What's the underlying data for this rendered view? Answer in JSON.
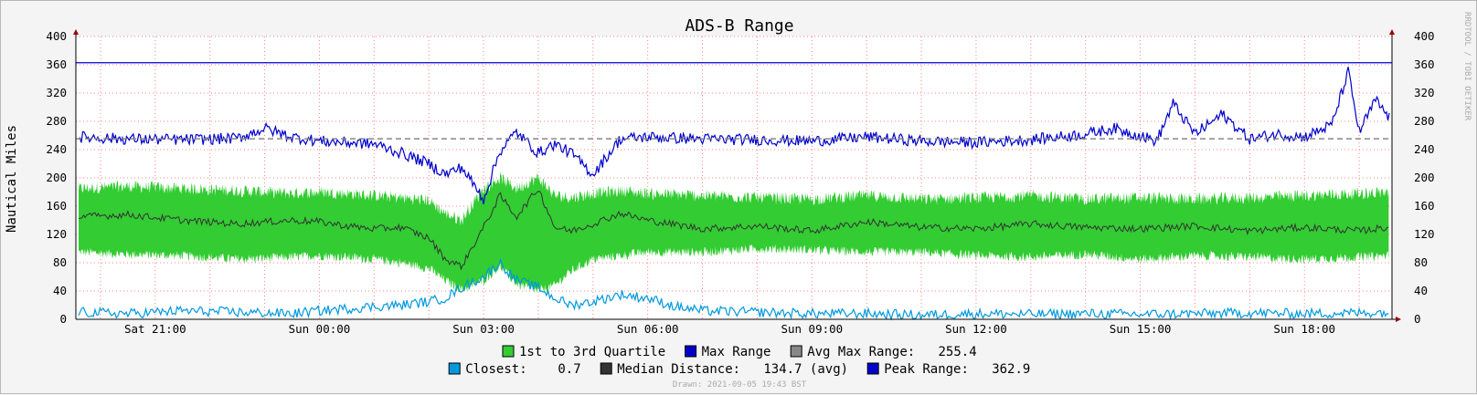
{
  "chart_data": {
    "type": "line",
    "title": "ADS-B Range",
    "ylabel": "Nautical Miles",
    "ylim": [
      0,
      400
    ],
    "y_ticks": [
      "0",
      "40",
      "80",
      "120",
      "160",
      "200",
      "240",
      "280",
      "320",
      "360",
      "400"
    ],
    "x_ticks": [
      "Sat 21:00",
      "Sun 00:00",
      "Sun 03:00",
      "Sun 06:00",
      "Sun 09:00",
      "Sun 12:00",
      "Sun 15:00",
      "Sun 18:00"
    ],
    "x_range_hours": [
      19.55,
      43.6
    ],
    "grid": true,
    "peak_range": 362.9,
    "avg_max_range": 255.4,
    "series": [
      {
        "name": "1st to 3rd Quartile",
        "kind": "band",
        "color": "#33cc33",
        "x": [
          19.6,
          20.5,
          21.5,
          22.5,
          23.5,
          24.0,
          24.5,
          25.0,
          25.5,
          26.0,
          26.3,
          26.6,
          27.0,
          27.3,
          27.6,
          28.0,
          28.3,
          28.6,
          29.0,
          29.5,
          30.0,
          31.0,
          32.0,
          33.0,
          34.0,
          35.0,
          36.0,
          37.0,
          38.0,
          39.0,
          40.0,
          41.0,
          42.0,
          43.0,
          43.55
        ],
        "low": [
          95,
          92,
          90,
          85,
          88,
          90,
          88,
          85,
          80,
          72,
          55,
          42,
          55,
          75,
          50,
          40,
          48,
          68,
          85,
          90,
          95,
          95,
          100,
          98,
          95,
          95,
          90,
          88,
          92,
          85,
          90,
          88,
          85,
          88,
          90
        ],
        "high": [
          185,
          188,
          185,
          182,
          178,
          180,
          178,
          175,
          172,
          168,
          150,
          140,
          185,
          200,
          185,
          200,
          175,
          172,
          178,
          182,
          178,
          175,
          172,
          170,
          175,
          170,
          172,
          175,
          170,
          172,
          170,
          172,
          175,
          178,
          180
        ]
      },
      {
        "name": "Median Distance",
        "kind": "line",
        "color": "#333333",
        "x": [
          19.6,
          20.5,
          21.5,
          22.5,
          23.5,
          24.0,
          24.5,
          25.0,
          25.5,
          26.0,
          26.3,
          26.6,
          27.0,
          27.3,
          27.6,
          28.0,
          28.3,
          28.6,
          29.0,
          29.5,
          30.0,
          31.0,
          32.0,
          33.0,
          34.0,
          35.0,
          36.0,
          37.0,
          38.0,
          39.0,
          40.0,
          41.0,
          42.0,
          43.0,
          43.55
        ],
        "values": [
          145,
          148,
          140,
          135,
          140,
          138,
          132,
          128,
          130,
          115,
          85,
          75,
          130,
          175,
          145,
          185,
          130,
          125,
          135,
          150,
          140,
          128,
          132,
          125,
          138,
          130,
          128,
          135,
          130,
          128,
          132,
          125,
          130,
          125,
          130
        ],
        "legend_value": "134.7 (avg)"
      },
      {
        "name": "Max Range",
        "kind": "line",
        "color": "#0000cc",
        "x": [
          19.6,
          20.5,
          21.5,
          22.5,
          23.0,
          23.5,
          24.0,
          24.5,
          25.0,
          25.5,
          26.0,
          26.3,
          26.6,
          27.0,
          27.3,
          27.6,
          28.0,
          28.3,
          28.6,
          29.0,
          29.5,
          30.0,
          31.0,
          32.0,
          33.0,
          34.0,
          35.0,
          36.0,
          37.0,
          38.0,
          38.5,
          39.0,
          39.3,
          39.6,
          40.0,
          40.5,
          41.0,
          41.5,
          42.0,
          42.5,
          42.8,
          43.0,
          43.3,
          43.55
        ],
        "values": [
          258,
          255,
          254,
          256,
          270,
          258,
          252,
          250,
          248,
          235,
          220,
          205,
          215,
          170,
          238,
          265,
          235,
          248,
          235,
          205,
          255,
          258,
          255,
          254,
          252,
          258,
          252,
          250,
          254,
          262,
          270,
          260,
          252,
          305,
          262,
          290,
          255,
          262,
          258,
          275,
          350,
          265,
          310,
          285
        ]
      },
      {
        "name": "Closest",
        "kind": "line",
        "color": "#0099dd",
        "x": [
          19.6,
          20.5,
          21.5,
          22.5,
          23.5,
          24.0,
          24.5,
          25.0,
          25.5,
          26.0,
          26.3,
          26.6,
          27.0,
          27.3,
          27.6,
          28.0,
          28.3,
          28.6,
          29.0,
          29.5,
          30.0,
          30.5,
          31.0,
          32.0,
          33.0,
          34.0,
          35.0,
          36.0,
          37.0,
          38.0,
          39.0,
          40.0,
          41.0,
          42.0,
          43.0,
          43.55
        ],
        "values": [
          10,
          8,
          12,
          10,
          8,
          12,
          15,
          18,
          20,
          25,
          30,
          45,
          60,
          80,
          55,
          45,
          30,
          20,
          25,
          35,
          30,
          18,
          12,
          10,
          8,
          8,
          6,
          8,
          7,
          8,
          7,
          8,
          9,
          8,
          9,
          10
        ],
        "legend_value": "0.7"
      }
    ]
  },
  "legend": {
    "row1": [
      {
        "label": "1st to 3rd Quartile",
        "color": "#33cc33"
      },
      {
        "label": "Max Range",
        "color": "#0000cc"
      },
      {
        "label": "Avg Max Range:   255.4",
        "color": "#888888"
      }
    ],
    "row2": [
      {
        "label": "Closest:    0.7",
        "color": "#0099dd"
      },
      {
        "label": "Median Distance:   134.7 (avg)",
        "color": "#333333"
      },
      {
        "label": "Peak Range:   362.9",
        "color": "#0000cc"
      }
    ]
  },
  "watermark": "RRDTOOL / TOBI OETIKER",
  "drawn": "Drawn: 2021-09-05 19:43 BST",
  "colors": {
    "plot_bg": "#ffffff",
    "grid": "#ff8080",
    "axis": "#000000",
    "peak_line": "#0000cc",
    "avg_line": "#888888"
  }
}
